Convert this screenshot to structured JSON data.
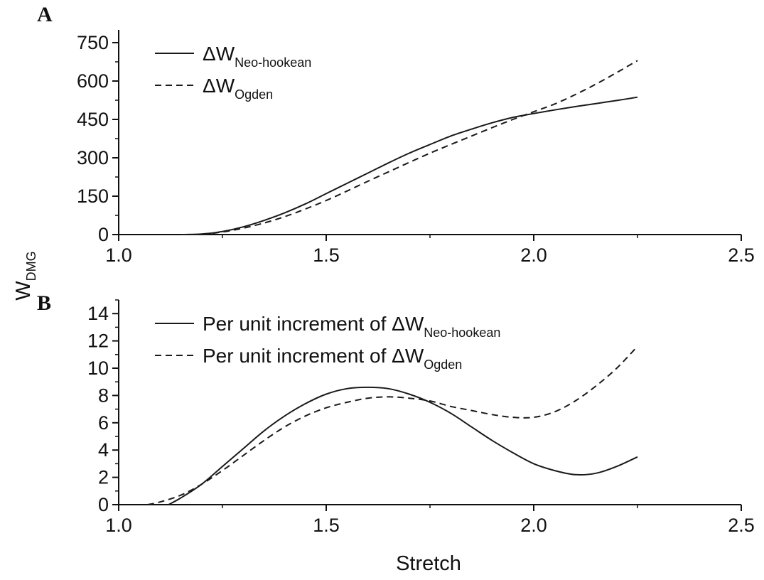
{
  "figure": {
    "ylabel_main": "W",
    "ylabel_sub": "DMG",
    "xlabel": "Stretch"
  },
  "colors": {
    "line": "#1a1a1a",
    "axis": "#111111",
    "background": "#ffffff"
  },
  "chart_data": [
    {
      "type": "line",
      "panel": "A",
      "xlim": [
        1.0,
        2.5
      ],
      "ylim": [
        0,
        800
      ],
      "xticks": [
        1.0,
        1.5,
        2.0,
        2.5
      ],
      "xtick_labels": [
        "1.0",
        "1.5",
        "2.0",
        "2.5"
      ],
      "yticks": [
        0,
        150,
        300,
        450,
        600,
        750
      ],
      "ytick_labels": [
        "0",
        "150",
        "300",
        "450",
        "600",
        "750"
      ],
      "grid": false,
      "legend_position": "top-left",
      "series": [
        {
          "legend_prefix": "ΔW",
          "legend_sub": "Neo-hookean",
          "style": "solid",
          "x": [
            1.15,
            1.2,
            1.25,
            1.3,
            1.35,
            1.4,
            1.45,
            1.5,
            1.55,
            1.6,
            1.65,
            1.7,
            1.75,
            1.8,
            1.85,
            1.9,
            1.95,
            2.0,
            2.05,
            2.1,
            2.15,
            2.2,
            2.25
          ],
          "y": [
            0,
            2,
            12,
            30,
            55,
            85,
            120,
            160,
            200,
            240,
            280,
            318,
            352,
            385,
            412,
            437,
            458,
            473,
            487,
            500,
            512,
            524,
            537
          ]
        },
        {
          "legend_prefix": "ΔW",
          "legend_sub": "Ogden",
          "style": "dashed",
          "x": [
            1.15,
            1.2,
            1.25,
            1.3,
            1.35,
            1.4,
            1.45,
            1.5,
            1.55,
            1.6,
            1.65,
            1.7,
            1.75,
            1.8,
            1.85,
            1.9,
            1.95,
            2.0,
            2.05,
            2.1,
            2.15,
            2.2,
            2.25
          ],
          "y": [
            0,
            1,
            10,
            25,
            45,
            70,
            100,
            133,
            170,
            208,
            245,
            282,
            318,
            352,
            385,
            418,
            450,
            480,
            510,
            547,
            588,
            633,
            680
          ]
        }
      ]
    },
    {
      "type": "line",
      "panel": "B",
      "xlim": [
        1.0,
        2.5
      ],
      "ylim": [
        0,
        15
      ],
      "xticks": [
        1.0,
        1.5,
        2.0,
        2.5
      ],
      "xtick_labels": [
        "1.0",
        "1.5",
        "2.0",
        "2.5"
      ],
      "yticks": [
        0,
        2,
        4,
        6,
        8,
        10,
        12,
        14
      ],
      "ytick_labels": [
        "0",
        "2",
        "4",
        "6",
        "8",
        "10",
        "12",
        "14"
      ],
      "grid": false,
      "legend_position": "top-left",
      "series": [
        {
          "legend_prefix": "Per unit increment of ΔW",
          "legend_sub": "Neo-hookean",
          "style": "solid",
          "x": [
            1.12,
            1.15,
            1.2,
            1.25,
            1.3,
            1.35,
            1.4,
            1.45,
            1.5,
            1.55,
            1.6,
            1.65,
            1.7,
            1.75,
            1.8,
            1.85,
            1.9,
            1.95,
            2.0,
            2.05,
            2.1,
            2.15,
            2.2,
            2.25
          ],
          "y": [
            0.0,
            0.5,
            1.5,
            2.8,
            4.1,
            5.4,
            6.5,
            7.4,
            8.1,
            8.5,
            8.6,
            8.5,
            8.1,
            7.5,
            6.7,
            5.7,
            4.7,
            3.8,
            3.0,
            2.5,
            2.2,
            2.3,
            2.8,
            3.5
          ]
        },
        {
          "legend_prefix": "Per unit increment of ΔW",
          "legend_sub": "Ogden",
          "style": "dashed",
          "x": [
            1.07,
            1.1,
            1.15,
            1.2,
            1.25,
            1.3,
            1.35,
            1.4,
            1.45,
            1.5,
            1.55,
            1.6,
            1.65,
            1.7,
            1.75,
            1.8,
            1.85,
            1.9,
            1.95,
            2.0,
            2.05,
            2.1,
            2.15,
            2.2,
            2.25
          ],
          "y": [
            0.0,
            0.2,
            0.7,
            1.5,
            2.5,
            3.6,
            4.7,
            5.7,
            6.5,
            7.1,
            7.5,
            7.8,
            7.9,
            7.8,
            7.6,
            7.2,
            6.9,
            6.6,
            6.4,
            6.4,
            6.8,
            7.6,
            8.7,
            10.0,
            11.6
          ]
        }
      ]
    }
  ]
}
